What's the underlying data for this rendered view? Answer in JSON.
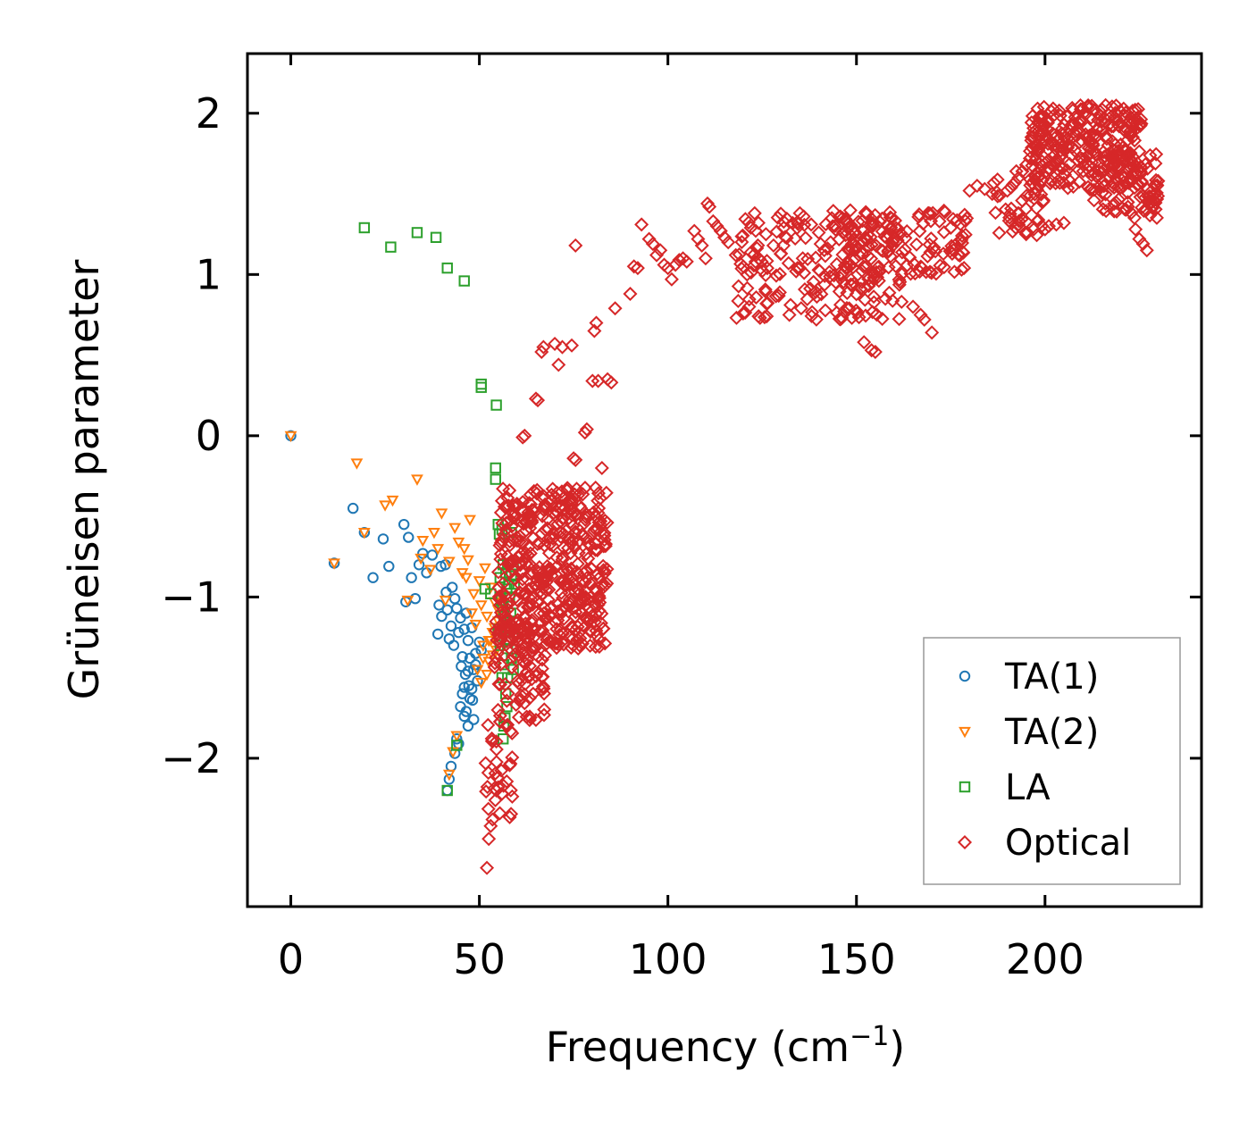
{
  "chart_data": {
    "type": "scatter",
    "title": "",
    "xlabel": "Frequency (cm",
    "xlabel_sup": "−1",
    "xlabel_close": ")",
    "ylabel": "Grüneisen parameter",
    "xlim": [
      -11.5,
      241.5
    ],
    "ylim": [
      -2.92,
      2.37
    ],
    "xticks": [
      0,
      50,
      100,
      150,
      200
    ],
    "xtick_labels": [
      "0",
      "50",
      "100",
      "150",
      "200"
    ],
    "yticks": [
      -2,
      -1,
      0,
      1,
      2
    ],
    "ytick_labels": [
      "−2",
      "−1",
      "0",
      "1",
      "2"
    ],
    "grid": false,
    "legend_position": "lower-right",
    "series": [
      {
        "name": "TA(1)",
        "marker": "circle",
        "color": "#1f77b4",
        "points": [
          [
            0,
            0
          ],
          [
            11.5,
            -0.79
          ],
          [
            16.5,
            -0.45
          ],
          [
            19.5,
            -0.6
          ],
          [
            21.8,
            -0.88
          ],
          [
            24.5,
            -0.64
          ],
          [
            26,
            -0.81
          ],
          [
            30,
            -0.55
          ],
          [
            30.5,
            -1.03
          ],
          [
            31.2,
            -0.63
          ],
          [
            32,
            -0.88
          ],
          [
            33,
            -1.01
          ],
          [
            34,
            -0.8
          ],
          [
            35,
            -0.73
          ],
          [
            36,
            -0.85
          ],
          [
            37.5,
            -0.74
          ],
          [
            39,
            -1.23
          ],
          [
            39.3,
            -1.05
          ],
          [
            39.8,
            -0.81
          ],
          [
            40,
            -1.12
          ],
          [
            41,
            -0.8
          ],
          [
            41.2,
            -0.97
          ],
          [
            41.5,
            -1.08
          ],
          [
            42,
            -1.26
          ],
          [
            42.5,
            -1.18
          ],
          [
            42.8,
            -0.94
          ],
          [
            43.2,
            -1.3
          ],
          [
            43.5,
            -1.01
          ],
          [
            44,
            -1.07
          ],
          [
            44.5,
            -1.22
          ],
          [
            45,
            -1.13
          ],
          [
            45.2,
            -1.43
          ],
          [
            45.5,
            -1.37
          ],
          [
            46,
            -1.2
          ],
          [
            46.3,
            -1.48
          ],
          [
            46.5,
            -1.1
          ],
          [
            47,
            -1.27
          ],
          [
            47.2,
            -1.55
          ],
          [
            47.5,
            -1.38
          ],
          [
            48,
            -1.19
          ],
          [
            48.2,
            -1.64
          ],
          [
            48.5,
            -1.45
          ],
          [
            49,
            -1.35
          ],
          [
            49.5,
            -1.52
          ],
          [
            50,
            -1.28
          ],
          [
            45,
            -1.68
          ],
          [
            46,
            -1.74
          ],
          [
            47,
            -1.8
          ],
          [
            47.5,
            -1.63
          ],
          [
            44,
            -1.88
          ],
          [
            43.5,
            -1.97
          ],
          [
            42.5,
            -2.05
          ],
          [
            42,
            -2.13
          ],
          [
            41.5,
            -2.2
          ],
          [
            44.5,
            -1.91
          ],
          [
            46.5,
            -1.71
          ],
          [
            48,
            -1.57
          ],
          [
            49,
            -1.42
          ],
          [
            50.5,
            -1.33
          ],
          [
            46,
            -1.56
          ],
          [
            45.5,
            -1.6
          ],
          [
            47,
            -1.46
          ],
          [
            48.5,
            -1.76
          ]
        ]
      },
      {
        "name": "TA(2)",
        "marker": "triangle-down",
        "color": "#ff7f0e",
        "points": [
          [
            0,
            0
          ],
          [
            11.5,
            -0.79
          ],
          [
            17.5,
            -0.17
          ],
          [
            19.5,
            -0.6
          ],
          [
            25,
            -0.43
          ],
          [
            27,
            -0.4
          ],
          [
            31,
            -1.02
          ],
          [
            33.5,
            -0.27
          ],
          [
            34.5,
            -0.76
          ],
          [
            35,
            -0.65
          ],
          [
            37,
            -0.83
          ],
          [
            38,
            -0.6
          ],
          [
            39,
            -0.7
          ],
          [
            40,
            -0.48
          ],
          [
            41,
            -1.02
          ],
          [
            42,
            -0.78
          ],
          [
            43.5,
            -0.57
          ],
          [
            44.5,
            -0.66
          ],
          [
            45.5,
            -0.85
          ],
          [
            46,
            -0.7
          ],
          [
            47,
            -0.77
          ],
          [
            47.5,
            -0.52
          ],
          [
            48.5,
            -0.98
          ],
          [
            49,
            -1.17
          ],
          [
            50,
            -0.9
          ],
          [
            50.5,
            -1.05
          ],
          [
            51,
            -1.3
          ],
          [
            51.5,
            -0.82
          ],
          [
            52,
            -1.12
          ],
          [
            52.5,
            -1.4
          ],
          [
            53,
            -0.94
          ],
          [
            53.5,
            -1.22
          ],
          [
            54,
            -1.03
          ],
          [
            54.5,
            -1.33
          ],
          [
            55,
            -1.15
          ],
          [
            49.5,
            -1.45
          ],
          [
            50.5,
            -1.53
          ],
          [
            51,
            -1.38
          ],
          [
            52,
            -1.48
          ],
          [
            53,
            -1.27
          ],
          [
            54,
            -1.19
          ],
          [
            55,
            -1.08
          ],
          [
            43,
            -1.96
          ],
          [
            44,
            -1.86
          ],
          [
            42,
            -2.1
          ],
          [
            46.5,
            -0.88
          ],
          [
            48,
            -1.1
          ],
          [
            52.5,
            -1.27
          ],
          [
            53.5,
            -1.36
          ]
        ]
      },
      {
        "name": "LA",
        "marker": "square",
        "color": "#2ca02c",
        "points": [
          [
            19.5,
            1.29
          ],
          [
            26.5,
            1.17
          ],
          [
            33.5,
            1.26
          ],
          [
            38.5,
            1.23
          ],
          [
            41.5,
            1.04
          ],
          [
            46,
            0.96
          ],
          [
            50.5,
            0.32
          ],
          [
            50.5,
            0.3
          ],
          [
            54.5,
            0.19
          ],
          [
            54.3,
            -0.2
          ],
          [
            54.3,
            -0.27
          ],
          [
            55,
            -0.55
          ],
          [
            55.3,
            -0.61
          ],
          [
            56,
            -0.58
          ],
          [
            56.3,
            -0.8
          ],
          [
            57,
            -0.85
          ],
          [
            57.3,
            -0.95
          ],
          [
            57.5,
            -0.8
          ],
          [
            58,
            -1.0
          ],
          [
            58.3,
            -1.1
          ],
          [
            58.5,
            -0.87
          ],
          [
            59,
            -0.8
          ],
          [
            59.3,
            -0.92
          ],
          [
            55.5,
            -0.88
          ],
          [
            55.8,
            -1.02
          ],
          [
            56.5,
            -1.12
          ],
          [
            57,
            -1.2
          ],
          [
            57.5,
            -1.32
          ],
          [
            58,
            -1.27
          ],
          [
            58.5,
            -1.38
          ],
          [
            59,
            -1.45
          ],
          [
            56,
            -1.5
          ],
          [
            56.5,
            -1.42
          ],
          [
            57,
            -1.6
          ],
          [
            57.3,
            -1.68
          ],
          [
            56.8,
            -1.75
          ],
          [
            56.5,
            -1.8
          ],
          [
            56.3,
            -1.88
          ],
          [
            53,
            -0.98
          ],
          [
            51.5,
            -0.95
          ],
          [
            55,
            -1.2
          ],
          [
            55.5,
            -1.3
          ],
          [
            58.5,
            -0.6
          ],
          [
            57.5,
            -1.5
          ],
          [
            58,
            -1.15
          ],
          [
            59,
            -1.22
          ],
          [
            56.2,
            -1.06
          ],
          [
            57.8,
            -0.92
          ],
          [
            41.5,
            -2.2
          ],
          [
            44,
            -1.92
          ]
        ]
      },
      {
        "name": "Optical",
        "marker": "diamond",
        "color": "#d62728",
        "clusters": [
          {
            "x": [
              55,
              84
            ],
            "y": [
              -1.32,
              -0.32
            ],
            "n": 450
          },
          {
            "x": [
              54,
              68
            ],
            "y": [
              -1.8,
              -1.1
            ],
            "n": 90
          },
          {
            "x": [
              51,
              59
            ],
            "y": [
              -2.4,
              -1.7
            ],
            "n": 30
          },
          {
            "x": [
              118,
              162
            ],
            "y": [
              0.72,
              1.38
            ],
            "n": 180
          },
          {
            "x": [
              142,
              180
            ],
            "y": [
              1.0,
              1.4
            ],
            "n": 130
          },
          {
            "x": [
              196,
              226
            ],
            "y": [
              1.52,
              2.05
            ],
            "n": 280
          },
          {
            "x": [
              214,
              230
            ],
            "y": [
              1.35,
              1.75
            ],
            "n": 80
          },
          {
            "x": [
              186,
              200
            ],
            "y": [
              1.22,
              1.65
            ],
            "n": 40
          }
        ],
        "points": [
          [
            52,
            -2.68
          ],
          [
            52.5,
            -2.5
          ],
          [
            53,
            -2.42
          ],
          [
            53.5,
            -2.38
          ],
          [
            54.5,
            -2.2
          ],
          [
            55,
            -2.18
          ],
          [
            56,
            -2.22
          ],
          [
            61.5,
            -0.01
          ],
          [
            62,
            0.0
          ],
          [
            65,
            0.23
          ],
          [
            65.5,
            0.22
          ],
          [
            66.5,
            0.52
          ],
          [
            67,
            0.55
          ],
          [
            70,
            0.57
          ],
          [
            71,
            0.44
          ],
          [
            72,
            0.55
          ],
          [
            74.5,
            0.56
          ],
          [
            75.5,
            1.18
          ],
          [
            75,
            -0.14
          ],
          [
            75.5,
            -0.15
          ],
          [
            78,
            0.02
          ],
          [
            78.5,
            0.04
          ],
          [
            80,
            0.34
          ],
          [
            81.5,
            0.34
          ],
          [
            82.5,
            -0.2
          ],
          [
            84,
            0.35
          ],
          [
            85,
            0.33
          ],
          [
            80.5,
            0.65
          ],
          [
            81,
            0.7
          ],
          [
            86,
            0.79
          ],
          [
            90,
            0.88
          ],
          [
            91,
            1.05
          ],
          [
            92,
            1.04
          ],
          [
            93,
            1.31
          ],
          [
            95,
            1.22
          ],
          [
            96,
            1.19
          ],
          [
            97,
            1.12
          ],
          [
            98,
            1.15
          ],
          [
            99,
            1.06
          ],
          [
            100,
            1.04
          ],
          [
            101,
            0.97
          ],
          [
            102,
            1.06
          ],
          [
            103,
            1.09
          ],
          [
            104,
            1.1
          ],
          [
            105,
            1.08
          ],
          [
            107,
            1.27
          ],
          [
            108,
            1.22
          ],
          [
            109,
            1.18
          ],
          [
            110,
            1.1
          ],
          [
            110.5,
            1.44
          ],
          [
            111,
            1.42
          ],
          [
            112,
            1.33
          ],
          [
            113,
            1.3
          ],
          [
            114,
            1.27
          ],
          [
            115,
            1.23
          ],
          [
            116,
            1.2
          ],
          [
            118,
            1.12
          ],
          [
            120,
            1.05
          ],
          [
            121,
            1.0
          ],
          [
            122,
            1.29
          ],
          [
            123,
            1.38
          ],
          [
            124,
            1.32
          ],
          [
            126,
            1.25
          ],
          [
            128,
            1.18
          ],
          [
            130,
            1.13
          ],
          [
            132,
            1.07
          ],
          [
            134,
            1.02
          ],
          [
            135,
            1.38
          ],
          [
            136,
            1.36
          ],
          [
            138,
            1.31
          ],
          [
            140,
            1.26
          ],
          [
            152,
            0.58
          ],
          [
            154,
            0.53
          ],
          [
            155,
            0.52
          ],
          [
            165,
            0.8
          ],
          [
            167,
            0.75
          ],
          [
            168,
            0.72
          ],
          [
            170,
            0.64
          ],
          [
            169,
            1.38
          ],
          [
            172,
            1.33
          ],
          [
            175,
            1.29
          ],
          [
            178,
            1.24
          ],
          [
            180,
            1.52
          ],
          [
            182,
            1.55
          ],
          [
            184,
            1.53
          ],
          [
            186,
            1.5
          ],
          [
            188,
            1.49
          ],
          [
            190,
            1.52
          ],
          [
            191,
            1.54
          ],
          [
            192,
            1.57
          ],
          [
            193,
            1.6
          ],
          [
            194,
            1.64
          ],
          [
            195,
            1.68
          ],
          [
            196,
            1.72
          ],
          [
            193,
            1.31
          ],
          [
            195,
            1.25
          ],
          [
            197,
            1.28
          ],
          [
            198,
            1.33
          ],
          [
            200,
            1.28
          ],
          [
            201,
            1.3
          ],
          [
            203,
            1.31
          ],
          [
            205,
            1.32
          ],
          [
            222,
            1.42
          ],
          [
            224,
            1.28
          ],
          [
            225,
            1.22
          ],
          [
            226,
            1.19
          ],
          [
            227,
            1.15
          ],
          [
            228,
            1.44
          ],
          [
            229,
            1.5
          ],
          [
            230,
            1.58
          ],
          [
            221,
            1.6
          ],
          [
            219,
            1.39
          ],
          [
            216,
            1.44
          ],
          [
            213,
            1.46
          ]
        ]
      }
    ]
  }
}
